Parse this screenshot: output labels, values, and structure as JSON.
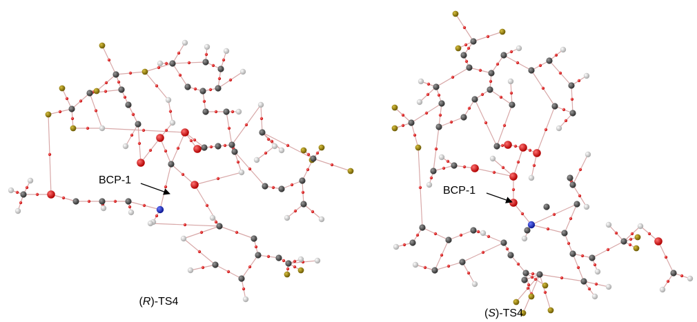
{
  "panels": [
    {
      "id": "R",
      "caption_open": "(",
      "caption_italic": "R",
      "caption_rest": ")-TS4",
      "bcp_label": "BCP-1"
    },
    {
      "id": "S",
      "caption_open": "(",
      "caption_italic": "S",
      "caption_rest": ")-TS4",
      "bcp_label": "BCP-1"
    }
  ],
  "colors": {
    "carbon": "#444444",
    "hydrogen": "#c4c4c4",
    "oxygen": "#e01010",
    "nitrogen": "#1020c0",
    "fluorine": "#9a8410",
    "critical_point": "#e01818",
    "bond_path": "#d8a8a8"
  }
}
